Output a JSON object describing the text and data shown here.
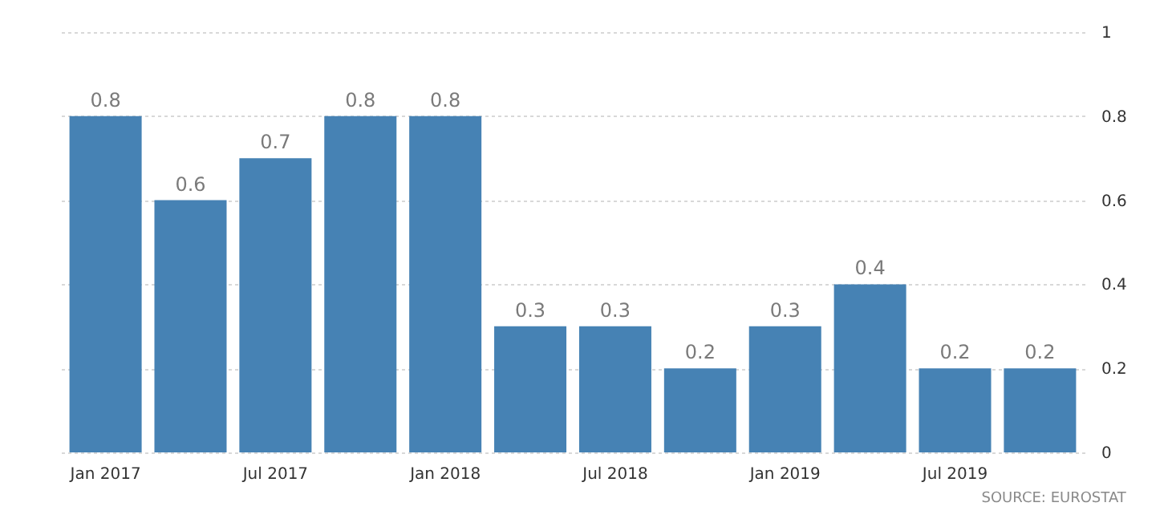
{
  "chart_data": {
    "type": "bar",
    "categories": [
      "Jan 2017",
      null,
      "Jul 2017",
      null,
      "Jan 2018",
      null,
      "Jul 2018",
      null,
      "Jan 2019",
      null,
      "Jul 2019",
      null
    ],
    "values": [
      0.8,
      0.6,
      0.7,
      0.8,
      0.8,
      0.3,
      0.3,
      0.2,
      0.3,
      0.4,
      0.2,
      0.2
    ],
    "color": "#4682b4",
    "ylim": [
      0,
      1
    ],
    "yticks": [
      0,
      0.2,
      0.4,
      0.6,
      0.8,
      1
    ],
    "grid": "y",
    "data_labels": true,
    "annotations": [
      "SOURCE: EUROSTAT"
    ]
  }
}
